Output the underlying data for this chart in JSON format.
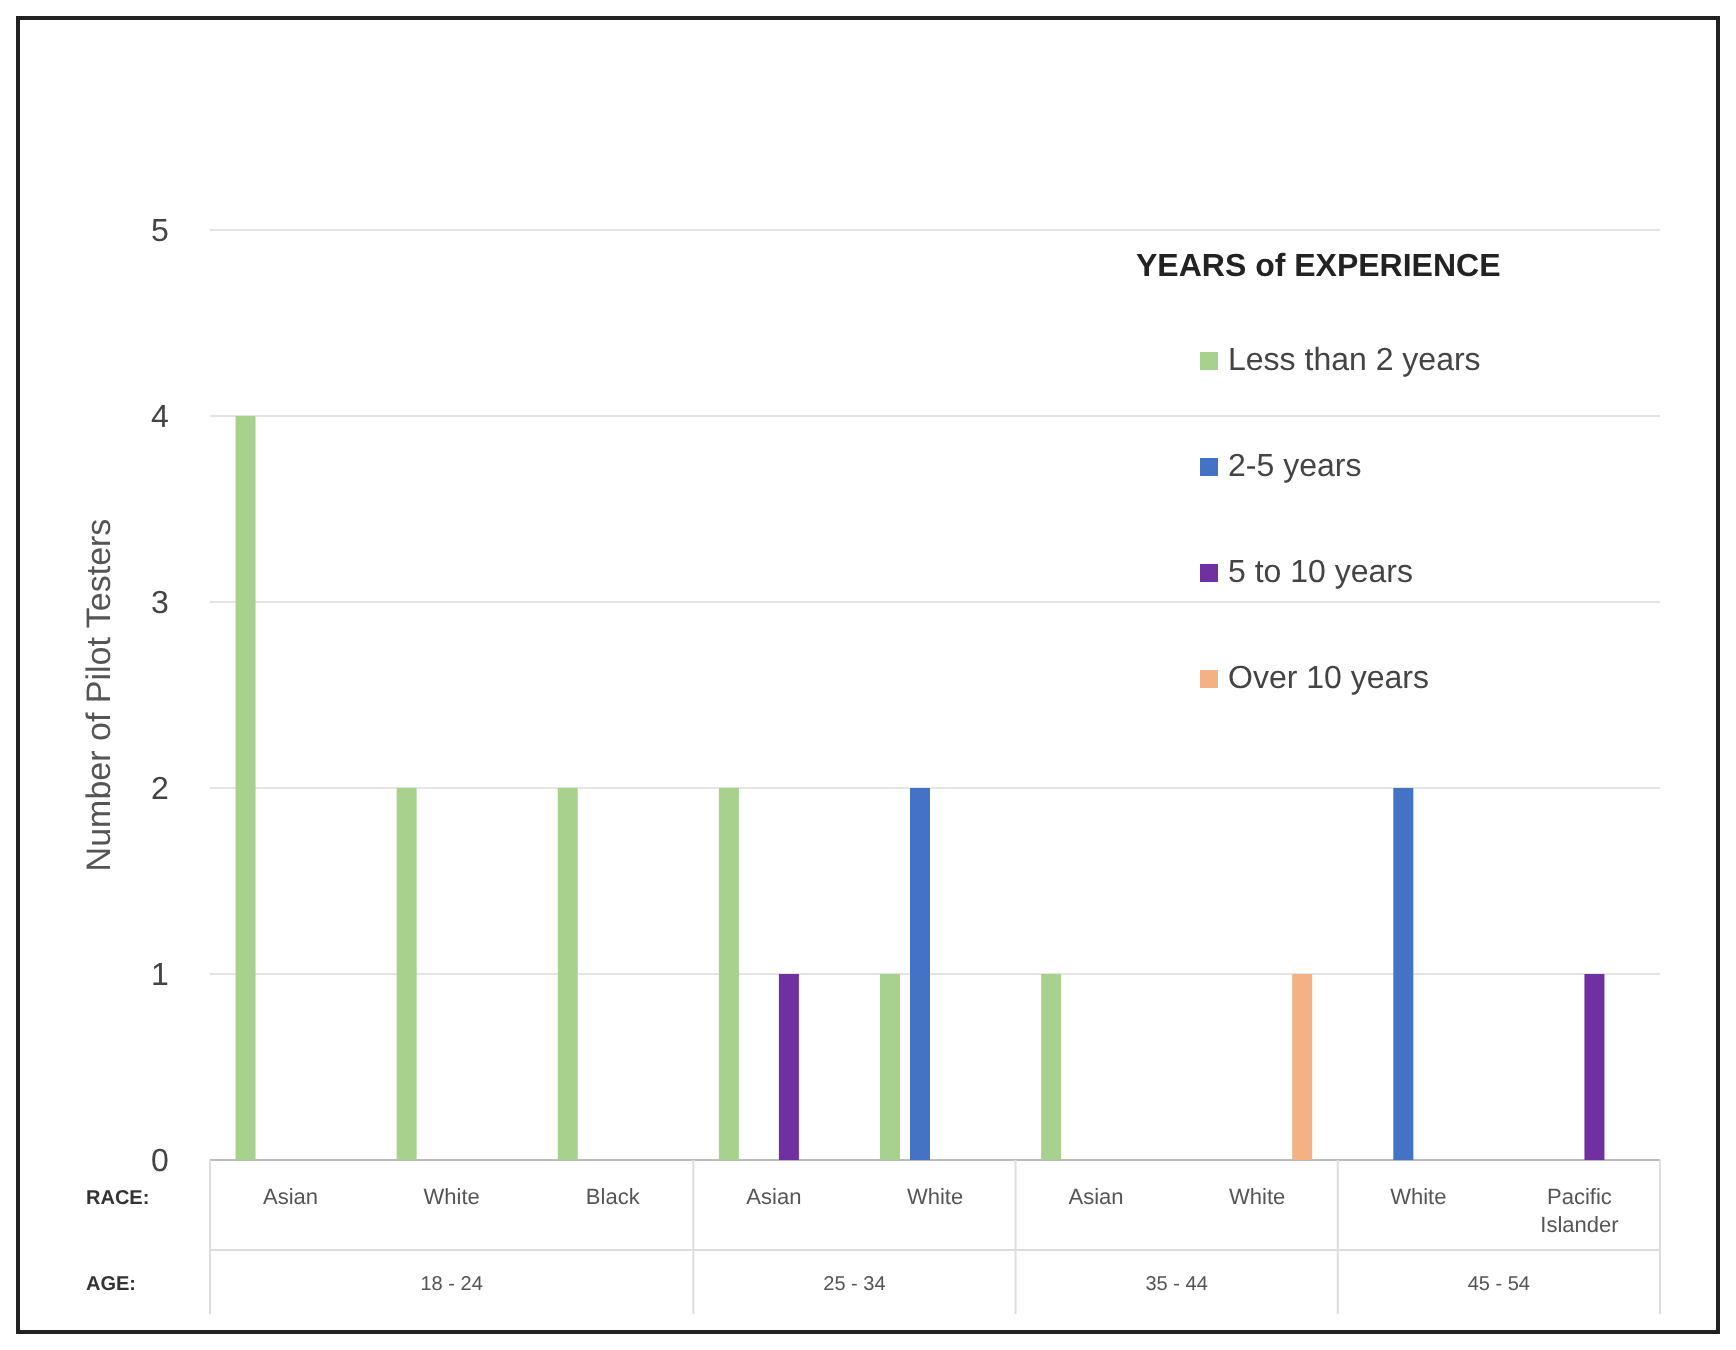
{
  "chart_data": {
    "type": "bar",
    "ylabel": "Number of Pilot Testers",
    "legend_title": "YEARS of EXPERIENCE",
    "categories": [
      "Asian",
      "White",
      "Black",
      "Asian",
      "White",
      "Asian",
      "White",
      "White",
      "Pacific Islander"
    ],
    "series": [
      {
        "name": "Less than 2 years",
        "color": "#a9d18e",
        "values": [
          4,
          2,
          2,
          2,
          1,
          1,
          null,
          null,
          null
        ]
      },
      {
        "name": "2-5 years",
        "color": "#4472c4",
        "values": [
          null,
          null,
          null,
          null,
          2,
          null,
          null,
          2,
          null
        ]
      },
      {
        "name": "5 to 10 years",
        "color": "#7030a0",
        "values": [
          null,
          null,
          null,
          1,
          null,
          null,
          null,
          null,
          1
        ]
      },
      {
        "name": "Over 10 years",
        "color": "#f4b183",
        "values": [
          null,
          null,
          null,
          null,
          null,
          null,
          1,
          null,
          null
        ]
      }
    ],
    "ylim": [
      0,
      5
    ],
    "yticks": [
      0,
      1,
      2,
      3,
      4,
      5
    ],
    "grid": "y",
    "legend": "top right",
    "annotations": [
      "RACE:",
      "AGE:",
      "18 - 24",
      "25 - 34",
      "35 - 44",
      "45 - 54"
    ]
  }
}
